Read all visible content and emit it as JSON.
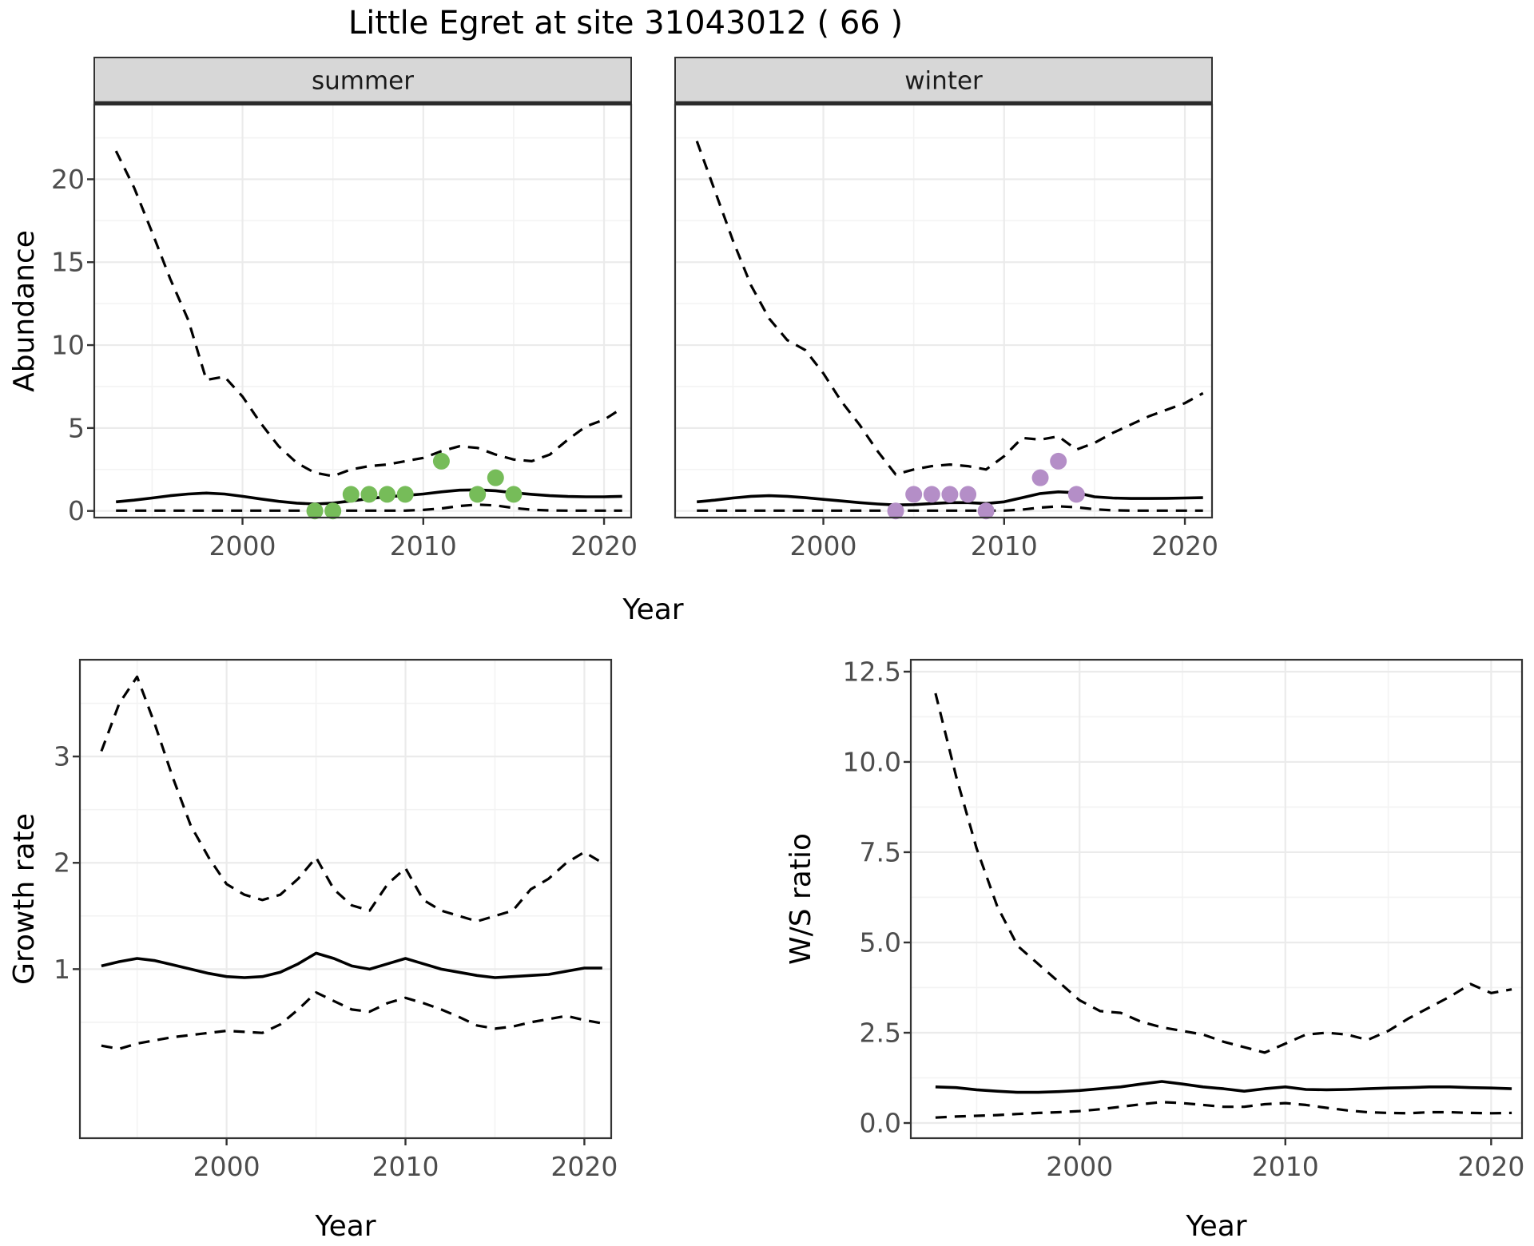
{
  "title": "Little Egret at site 31043012 ( 66 )",
  "colors": {
    "point_summer": "#76BC59",
    "point_winter": "#B48EC7",
    "strip_bg": "#D7D7D7",
    "strip_border": "#2A2A2A",
    "panel_border": "#333333",
    "grid_major": "#EBEBEB",
    "grid_minor": "#F3F3F3",
    "axis_text": "#4D4D4D",
    "line": "#000000"
  },
  "chart_data": {
    "type": "line",
    "x_years": [
      1993,
      1994,
      1995,
      1996,
      1997,
      1998,
      1999,
      2000,
      2001,
      2002,
      2003,
      2004,
      2005,
      2006,
      2007,
      2008,
      2009,
      2010,
      2011,
      2012,
      2013,
      2014,
      2015,
      2016,
      2017,
      2018,
      2019,
      2020,
      2021
    ],
    "xlim": [
      1991.8,
      2021.5
    ],
    "xticks": {
      "values": [
        2000,
        2010,
        2020
      ],
      "labels": [
        "2000",
        "2010",
        "2020"
      ]
    },
    "xminor": [
      1995,
      2005,
      2015
    ],
    "shared_xlabel": "Year",
    "panels": [
      {
        "id": "abundance-summer",
        "facet_label": "summer",
        "ylabel": "Abundance",
        "ylim": [
          -0.4,
          24.5
        ],
        "yticks": {
          "values": [
            0,
            5,
            10,
            15,
            20
          ],
          "labels": [
            "0",
            "5",
            "10",
            "15",
            "20"
          ]
        },
        "yminor": [
          2.5,
          7.5,
          12.5,
          17.5,
          22.5
        ],
        "series": [
          {
            "name": "upper_95ci",
            "style": "dashed",
            "values": [
              21.7,
              19.5,
              16.8,
              14.0,
              11.5,
              7.9,
              8.1,
              6.9,
              5.3,
              3.9,
              2.9,
              2.3,
              2.1,
              2.5,
              2.7,
              2.8,
              3.0,
              3.2,
              3.6,
              3.9,
              3.8,
              3.4,
              3.1,
              3.0,
              3.4,
              4.3,
              5.1,
              5.5,
              6.2
            ]
          },
          {
            "name": "mean",
            "style": "solid",
            "values": [
              0.55,
              0.65,
              0.78,
              0.92,
              1.02,
              1.08,
              1.02,
              0.88,
              0.72,
              0.58,
              0.47,
              0.42,
              0.47,
              0.6,
              0.74,
              0.86,
              0.93,
              1.02,
              1.15,
              1.25,
              1.27,
              1.22,
              1.1,
              1.0,
              0.92,
              0.87,
              0.85,
              0.85,
              0.88
            ]
          },
          {
            "name": "lower_95ci",
            "style": "dashed",
            "values": [
              0.02,
              0.02,
              0.02,
              0.02,
              0.02,
              0.02,
              0.02,
              0.02,
              0.02,
              0.02,
              0.02,
              0.02,
              0.02,
              0.02,
              0.02,
              0.02,
              0.02,
              0.06,
              0.15,
              0.3,
              0.38,
              0.33,
              0.18,
              0.07,
              0.03,
              0.02,
              0.02,
              0.02,
              0.02
            ]
          }
        ],
        "observations": {
          "color": "#76BC59",
          "points": [
            [
              2004,
              0
            ],
            [
              2005,
              0
            ],
            [
              2006,
              1
            ],
            [
              2007,
              1
            ],
            [
              2008,
              1
            ],
            [
              2009,
              1
            ],
            [
              2011,
              3
            ],
            [
              2013,
              1
            ],
            [
              2014,
              2
            ],
            [
              2015,
              1
            ]
          ]
        }
      },
      {
        "id": "abundance-winter",
        "facet_label": "winter",
        "ylabel": "",
        "ylim": [
          -0.4,
          24.5
        ],
        "yticks": {
          "values": [],
          "labels": []
        },
        "yminor": [
          2.5,
          7.5,
          12.5,
          17.5,
          22.5
        ],
        "ymajor_grid": [
          0,
          5,
          10,
          15,
          20
        ],
        "series": [
          {
            "name": "upper_95ci",
            "style": "dashed",
            "values": [
              22.3,
              19.3,
              16.3,
              13.6,
              11.6,
              10.3,
              9.7,
              8.3,
              6.6,
              5.2,
              3.6,
              2.2,
              2.5,
              2.7,
              2.8,
              2.7,
              2.5,
              3.3,
              4.4,
              4.3,
              4.5,
              3.7,
              4.1,
              4.7,
              5.2,
              5.7,
              6.1,
              6.5,
              7.1
            ]
          },
          {
            "name": "mean",
            "style": "solid",
            "values": [
              0.55,
              0.65,
              0.78,
              0.88,
              0.92,
              0.88,
              0.8,
              0.7,
              0.6,
              0.5,
              0.42,
              0.36,
              0.38,
              0.45,
              0.5,
              0.5,
              0.45,
              0.55,
              0.8,
              1.05,
              1.15,
              1.1,
              0.85,
              0.78,
              0.75,
              0.75,
              0.76,
              0.78,
              0.8
            ]
          },
          {
            "name": "lower_95ci",
            "style": "dashed",
            "values": [
              0.02,
              0.02,
              0.02,
              0.02,
              0.02,
              0.02,
              0.02,
              0.02,
              0.02,
              0.02,
              0.02,
              0.02,
              0.02,
              0.02,
              0.02,
              0.02,
              0.02,
              0.02,
              0.08,
              0.2,
              0.28,
              0.22,
              0.1,
              0.04,
              0.02,
              0.02,
              0.02,
              0.02,
              0.02
            ]
          }
        ],
        "observations": {
          "color": "#B48EC7",
          "points": [
            [
              2004,
              0
            ],
            [
              2005,
              1
            ],
            [
              2006,
              1
            ],
            [
              2007,
              1
            ],
            [
              2008,
              1
            ],
            [
              2009,
              0
            ],
            [
              2012,
              2
            ],
            [
              2013,
              3
            ],
            [
              2014,
              1
            ]
          ]
        }
      },
      {
        "id": "growth-rate",
        "facet_label": "",
        "ylabel": "Growth rate",
        "xlabel": "Year",
        "ylim": [
          -0.59,
          3.91
        ],
        "yticks": {
          "values": [
            1,
            2,
            3
          ],
          "labels": [
            "1",
            "2",
            "3"
          ]
        },
        "yminor": [
          0.5,
          1.5,
          2.5,
          3.5
        ],
        "series": [
          {
            "name": "upper_95ci",
            "style": "dashed",
            "values": [
              3.05,
              3.5,
              3.75,
              3.3,
              2.8,
              2.35,
              2.05,
              1.8,
              1.7,
              1.65,
              1.7,
              1.85,
              2.05,
              1.75,
              1.6,
              1.55,
              1.8,
              1.95,
              1.65,
              1.55,
              1.5,
              1.45,
              1.5,
              1.55,
              1.75,
              1.85,
              2.0,
              2.1,
              2.0
            ]
          },
          {
            "name": "mean",
            "style": "solid",
            "values": [
              1.03,
              1.07,
              1.1,
              1.08,
              1.04,
              1.0,
              0.96,
              0.93,
              0.92,
              0.93,
              0.97,
              1.05,
              1.15,
              1.1,
              1.03,
              1.0,
              1.05,
              1.1,
              1.05,
              1.0,
              0.97,
              0.94,
              0.92,
              0.93,
              0.94,
              0.95,
              0.98,
              1.01,
              1.01
            ]
          },
          {
            "name": "lower_95ci",
            "style": "dashed",
            "values": [
              0.28,
              0.25,
              0.3,
              0.33,
              0.36,
              0.38,
              0.4,
              0.42,
              0.41,
              0.4,
              0.48,
              0.62,
              0.78,
              0.7,
              0.62,
              0.6,
              0.68,
              0.73,
              0.68,
              0.62,
              0.55,
              0.47,
              0.44,
              0.46,
              0.5,
              0.53,
              0.56,
              0.52,
              0.49
            ]
          }
        ],
        "observations": {
          "color": "",
          "points": []
        }
      },
      {
        "id": "ws-ratio",
        "facet_label": "",
        "ylabel": "W/S ratio",
        "xlabel": "Year",
        "ylim": [
          -0.42,
          12.83
        ],
        "yticks": {
          "values": [
            0,
            2.5,
            5,
            7.5,
            10,
            12.5
          ],
          "labels": [
            "0.0",
            "2.5",
            "5.0",
            "7.5",
            "10.0",
            "12.5"
          ]
        },
        "yminor": [
          1.25,
          3.75,
          6.25,
          8.75,
          11.25
        ],
        "series": [
          {
            "name": "upper_95ci",
            "style": "dashed",
            "values": [
              11.9,
              9.6,
              7.6,
              6.0,
              4.9,
              4.4,
              3.9,
              3.4,
              3.1,
              3.05,
              2.8,
              2.65,
              2.55,
              2.45,
              2.25,
              2.1,
              1.95,
              2.2,
              2.45,
              2.5,
              2.45,
              2.3,
              2.55,
              2.9,
              3.2,
              3.5,
              3.85,
              3.6,
              3.7
            ]
          },
          {
            "name": "mean",
            "style": "solid",
            "values": [
              1.0,
              0.98,
              0.92,
              0.88,
              0.85,
              0.85,
              0.87,
              0.9,
              0.95,
              1.0,
              1.08,
              1.15,
              1.08,
              1.0,
              0.95,
              0.88,
              0.95,
              1.0,
              0.93,
              0.92,
              0.93,
              0.95,
              0.97,
              0.98,
              1.0,
              1.0,
              0.98,
              0.97,
              0.95
            ]
          },
          {
            "name": "lower_95ci",
            "style": "dashed",
            "values": [
              0.15,
              0.18,
              0.2,
              0.22,
              0.25,
              0.28,
              0.3,
              0.33,
              0.38,
              0.45,
              0.52,
              0.58,
              0.55,
              0.5,
              0.45,
              0.45,
              0.52,
              0.55,
              0.5,
              0.42,
              0.35,
              0.3,
              0.28,
              0.27,
              0.3,
              0.3,
              0.28,
              0.27,
              0.28
            ]
          }
        ],
        "observations": {
          "color": "",
          "points": []
        }
      }
    ]
  }
}
